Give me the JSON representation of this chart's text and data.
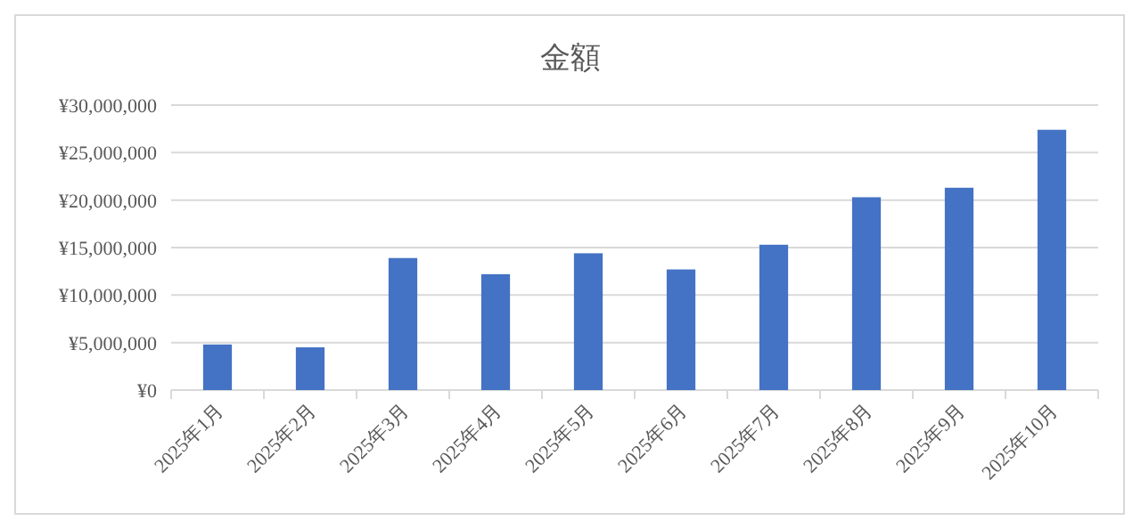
{
  "chart_data": {
    "type": "bar",
    "title": "金額",
    "categories": [
      "2025年1月",
      "2025年2月",
      "2025年3月",
      "2025年4月",
      "2025年5月",
      "2025年6月",
      "2025年7月",
      "2025年8月",
      "2025年9月",
      "2025年10月"
    ],
    "values": [
      4800000,
      4500000,
      13900000,
      12200000,
      14400000,
      12700000,
      15300000,
      20300000,
      21300000,
      27400000
    ],
    "color": "#4472c4",
    "ylim": [
      0,
      30000000
    ],
    "yticks": [
      {
        "value": 0,
        "label": "¥0"
      },
      {
        "value": 5000000,
        "label": "¥5,000,000"
      },
      {
        "value": 10000000,
        "label": "¥10,000,000"
      },
      {
        "value": 15000000,
        "label": "¥15,000,000"
      },
      {
        "value": 20000000,
        "label": "¥20,000,000"
      },
      {
        "value": 25000000,
        "label": "¥25,000,000"
      },
      {
        "value": 30000000,
        "label": "¥30,000,000"
      }
    ],
    "grid": "y"
  }
}
